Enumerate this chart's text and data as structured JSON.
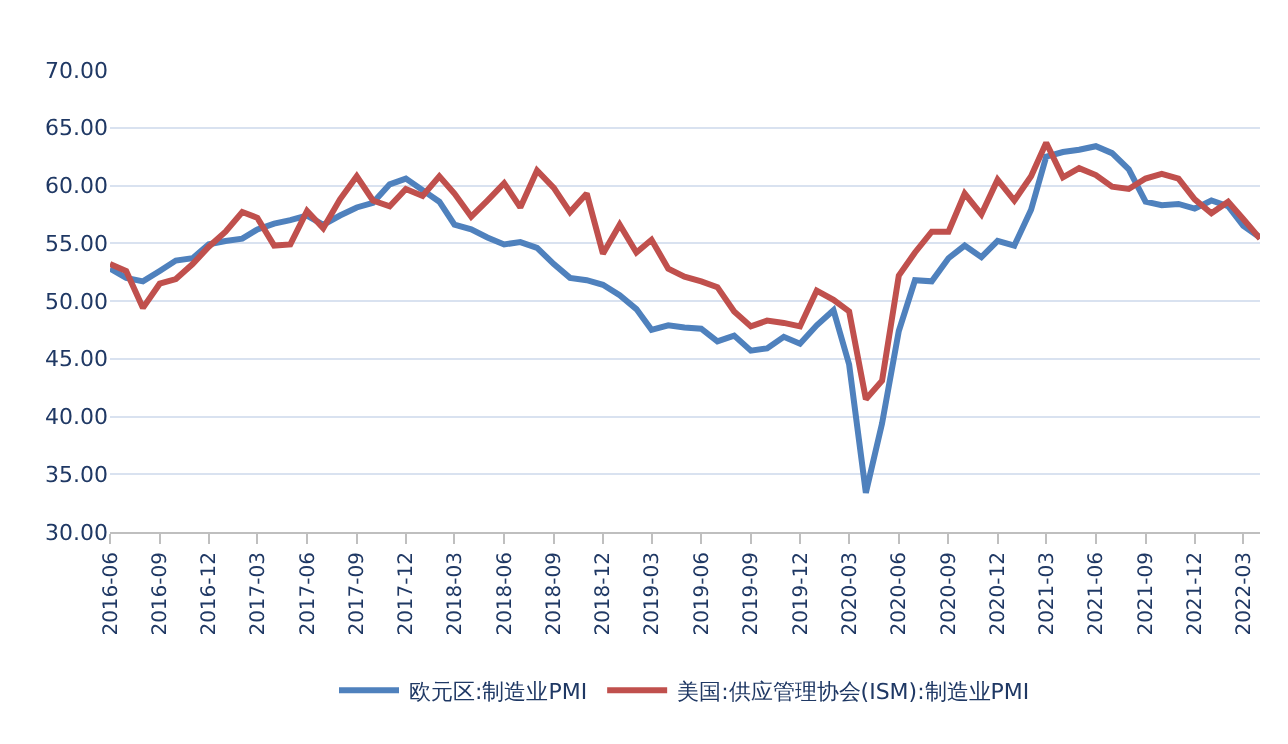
{
  "chart_data": {
    "type": "line",
    "x": [
      "2016-06",
      "2016-07",
      "2016-08",
      "2016-09",
      "2016-10",
      "2016-11",
      "2016-12",
      "2017-01",
      "2017-02",
      "2017-03",
      "2017-04",
      "2017-05",
      "2017-06",
      "2017-07",
      "2017-08",
      "2017-09",
      "2017-10",
      "2017-11",
      "2017-12",
      "2018-01",
      "2018-02",
      "2018-03",
      "2018-04",
      "2018-05",
      "2018-06",
      "2018-07",
      "2018-08",
      "2018-09",
      "2018-10",
      "2018-11",
      "2018-12",
      "2019-01",
      "2019-02",
      "2019-03",
      "2019-04",
      "2019-05",
      "2019-06",
      "2019-07",
      "2019-08",
      "2019-09",
      "2019-10",
      "2019-11",
      "2019-12",
      "2020-01",
      "2020-02",
      "2020-03",
      "2020-04",
      "2020-05",
      "2020-06",
      "2020-07",
      "2020-08",
      "2020-09",
      "2020-10",
      "2020-11",
      "2020-12",
      "2021-01",
      "2021-02",
      "2021-03",
      "2021-04",
      "2021-05",
      "2021-06",
      "2021-07",
      "2021-08",
      "2021-09",
      "2021-10",
      "2021-11",
      "2021-12",
      "2022-01",
      "2022-02",
      "2022-03",
      "2022-04"
    ],
    "series": [
      {
        "name": "欧元区:制造业PMI",
        "color": "#4f81bd",
        "values": [
          52.8,
          52.0,
          51.7,
          52.6,
          53.5,
          53.7,
          54.9,
          55.2,
          55.4,
          56.2,
          56.7,
          57.0,
          57.4,
          56.6,
          57.4,
          58.1,
          58.5,
          60.1,
          60.6,
          59.6,
          58.6,
          56.6,
          56.2,
          55.5,
          54.9,
          55.1,
          54.6,
          53.2,
          52.0,
          51.8,
          51.4,
          50.5,
          49.3,
          47.5,
          47.9,
          47.7,
          47.6,
          46.5,
          47.0,
          45.7,
          45.9,
          46.9,
          46.3,
          47.9,
          49.2,
          44.5,
          33.4,
          39.4,
          47.4,
          51.8,
          51.7,
          53.7,
          54.8,
          53.8,
          55.2,
          54.8,
          57.9,
          62.5,
          62.9,
          63.1,
          63.4,
          62.8,
          61.4,
          58.6,
          58.3,
          58.4,
          58.0,
          58.7,
          58.2,
          56.5,
          55.5
        ]
      },
      {
        "name": "美国:供应管理协会(ISM):制造业PMI",
        "color": "#c0504d",
        "values": [
          53.2,
          52.6,
          49.4,
          51.5,
          51.9,
          53.2,
          54.7,
          56.0,
          57.7,
          57.2,
          54.8,
          54.9,
          57.8,
          56.3,
          58.8,
          60.8,
          58.7,
          58.2,
          59.7,
          59.1,
          60.8,
          59.3,
          57.3,
          58.7,
          60.2,
          58.1,
          61.3,
          59.8,
          57.7,
          59.3,
          54.1,
          56.6,
          54.2,
          55.3,
          52.8,
          52.1,
          51.7,
          51.2,
          49.1,
          47.8,
          48.3,
          48.1,
          47.8,
          50.9,
          50.1,
          49.1,
          41.5,
          43.1,
          52.2,
          54.2,
          56.0,
          56.0,
          59.3,
          57.5,
          60.5,
          58.7,
          60.8,
          63.7,
          60.7,
          61.5,
          60.9,
          59.9,
          59.7,
          60.6,
          61.0,
          60.6,
          58.8,
          57.6,
          58.6,
          57.1,
          55.4
        ]
      }
    ],
    "xlim": [
      "2016-06",
      "2022-04"
    ],
    "xticks": [
      "2016-06",
      "2016-09",
      "2016-12",
      "2017-03",
      "2017-06",
      "2017-09",
      "2017-12",
      "2018-03",
      "2018-06",
      "2018-09",
      "2018-12",
      "2019-03",
      "2019-06",
      "2019-09",
      "2019-12",
      "2020-03",
      "2020-06",
      "2020-09",
      "2020-12",
      "2021-03",
      "2021-06",
      "2021-09",
      "2021-12",
      "2022-03"
    ],
    "ylim": [
      30,
      70
    ],
    "yticks": [
      {
        "value": 30,
        "label": "30.00"
      },
      {
        "value": 35,
        "label": "35.00"
      },
      {
        "value": 40,
        "label": "40.00"
      },
      {
        "value": 45,
        "label": "45.00"
      },
      {
        "value": 50,
        "label": "50.00"
      },
      {
        "value": 55,
        "label": "55.00"
      },
      {
        "value": 60,
        "label": "60.00"
      },
      {
        "value": 65,
        "label": "65.00"
      },
      {
        "value": 70,
        "label": "70.00"
      }
    ],
    "grid": "y",
    "legend": "bottom",
    "marker": "none",
    "line_style": "solid"
  }
}
